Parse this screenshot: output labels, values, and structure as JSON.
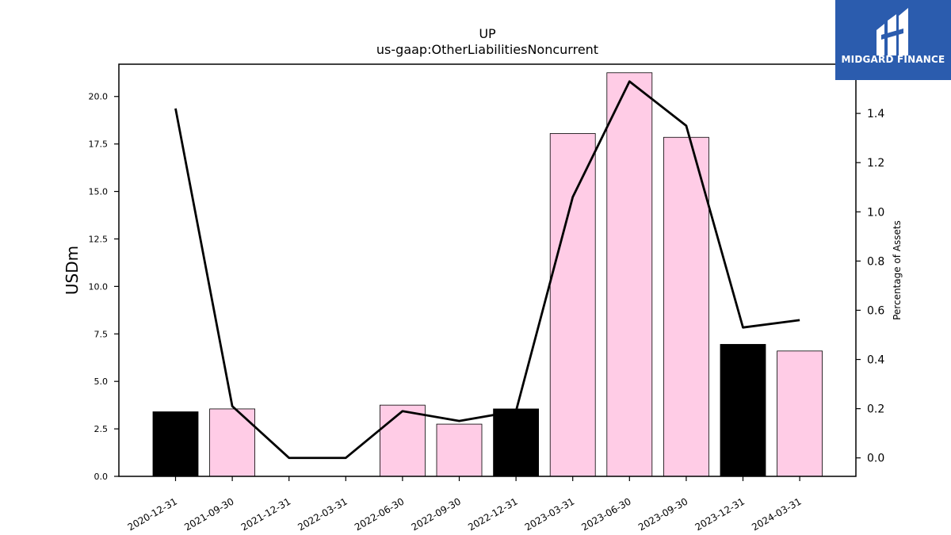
{
  "chart_data": {
    "type": "bar",
    "title": "UP",
    "subtitle": "us-gaap:OtherLiabilitiesNoncurrent",
    "ylabel": "USDm",
    "y2label": "Percentage of Assets",
    "categories": [
      "2020-12-31",
      "2021-09-30",
      "2021-12-31",
      "2022-03-31",
      "2022-06-30",
      "2022-09-30",
      "2022-12-31",
      "2023-03-31",
      "2023-06-30",
      "2023-09-30",
      "2023-12-31",
      "2024-03-31"
    ],
    "series": [
      {
        "type": "bar",
        "axis": "left",
        "values": [
          3.4,
          3.55,
          0,
          0,
          3.75,
          2.75,
          3.55,
          18.05,
          21.25,
          17.85,
          6.95,
          6.6
        ],
        "colors": [
          "#000000",
          "#ffcce6",
          "#ffcce6",
          "#ffcce6",
          "#ffcce6",
          "#ffcce6",
          "#000000",
          "#ffcce6",
          "#ffcce6",
          "#ffcce6",
          "#000000",
          "#ffcce6"
        ]
      },
      {
        "type": "line",
        "axis": "right",
        "color": "#000000",
        "values": [
          1.42,
          0.21,
          0.0,
          0.0,
          0.19,
          0.15,
          0.19,
          1.06,
          1.53,
          1.35,
          0.53,
          0.56
        ]
      }
    ],
    "ylim": [
      0,
      21.7
    ],
    "yticks": [
      "0.0",
      "2.5",
      "5.0",
      "7.5",
      "10.0",
      "12.5",
      "15.0",
      "17.5",
      "20.0"
    ],
    "y2lim": [
      -0.075,
      1.6
    ],
    "y2ticks": [
      "0.0",
      "0.2",
      "0.4",
      "0.6",
      "0.8",
      "1.0",
      "1.2",
      "1.4"
    ],
    "legend": "none",
    "grid": false
  },
  "logo": {
    "text": "MIDGARD FINANCE",
    "color": "#2b5cae"
  }
}
